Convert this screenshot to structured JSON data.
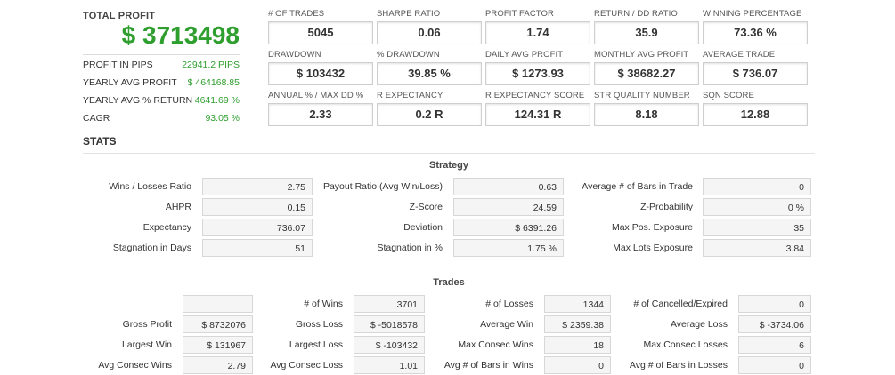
{
  "total_profit": {
    "title": "TOTAL PROFIT",
    "value": "$ 3713498",
    "rows": [
      {
        "label": "PROFIT IN PIPS",
        "value": "22941.2 PIPS"
      },
      {
        "label": "YEARLY AVG PROFIT",
        "value": "$ 464168.85"
      },
      {
        "label": "YEARLY AVG % RETURN",
        "value": "4641.69 %"
      },
      {
        "label": "CAGR",
        "value": "93.05 %"
      }
    ]
  },
  "metrics": [
    {
      "label": "# OF TRADES",
      "value": "5045"
    },
    {
      "label": "SHARPE RATIO",
      "value": "0.06"
    },
    {
      "label": "PROFIT FACTOR",
      "value": "1.74"
    },
    {
      "label": "RETURN / DD RATIO",
      "value": "35.9"
    },
    {
      "label": "WINNING PERCENTAGE",
      "value": "73.36 %"
    },
    {
      "label": "DRAWDOWN",
      "value": "$ 103432"
    },
    {
      "label": "% DRAWDOWN",
      "value": "39.85 %"
    },
    {
      "label": "DAILY AVG PROFIT",
      "value": "$ 1273.93"
    },
    {
      "label": "MONTHLY AVG PROFIT",
      "value": "$ 38682.27"
    },
    {
      "label": "AVERAGE TRADE",
      "value": "$ 736.07"
    },
    {
      "label": "ANNUAL % / MAX DD %",
      "value": "2.33"
    },
    {
      "label": "R EXPECTANCY",
      "value": "0.2 R"
    },
    {
      "label": "R EXPECTANCY SCORE",
      "value": "124.31 R"
    },
    {
      "label": "STR QUALITY NUMBER",
      "value": "8.18"
    },
    {
      "label": "SQN SCORE",
      "value": "12.88"
    }
  ],
  "stats": {
    "title": "STATS",
    "strategy": {
      "title": "Strategy",
      "rows": [
        [
          {
            "label": "Wins / Losses Ratio",
            "value": "2.75"
          },
          {
            "label": "Payout Ratio (Avg Win/Loss)",
            "value": "0.63"
          },
          {
            "label": "Average # of Bars in Trade",
            "value": "0"
          }
        ],
        [
          {
            "label": "AHPR",
            "value": "0.15"
          },
          {
            "label": "Z-Score",
            "value": "24.59"
          },
          {
            "label": "Z-Probability",
            "value": "0 %"
          }
        ],
        [
          {
            "label": "Expectancy",
            "value": "736.07"
          },
          {
            "label": "Deviation",
            "value": "$ 6391.26"
          },
          {
            "label": "Max Pos. Exposure",
            "value": "35"
          }
        ],
        [
          {
            "label": "Stagnation in Days",
            "value": "51"
          },
          {
            "label": "Stagnation in %",
            "value": "1.75 %"
          },
          {
            "label": "Max Lots Exposure",
            "value": "3.84"
          }
        ]
      ]
    },
    "trades": {
      "title": "Trades",
      "rows": [
        [
          {
            "label": "",
            "value": ""
          },
          {
            "label": "# of Wins",
            "value": "3701"
          },
          {
            "label": "# of Losses",
            "value": "1344"
          },
          {
            "label": "# of Cancelled/Expired",
            "value": "0"
          }
        ],
        [
          {
            "label": "Gross Profit",
            "value": "$ 8732076"
          },
          {
            "label": "Gross Loss",
            "value": "$ -5018578"
          },
          {
            "label": "Average Win",
            "value": "$ 2359.38"
          },
          {
            "label": "Average Loss",
            "value": "$ -3734.06"
          }
        ],
        [
          {
            "label": "Largest Win",
            "value": "$ 131967"
          },
          {
            "label": "Largest Loss",
            "value": "$ -103432"
          },
          {
            "label": "Max Consec Wins",
            "value": "18"
          },
          {
            "label": "Max Consec Losses",
            "value": "6"
          }
        ],
        [
          {
            "label": "Avg Consec Wins",
            "value": "2.79"
          },
          {
            "label": "Avg Consec Loss",
            "value": "1.01"
          },
          {
            "label": "Avg # of Bars in Wins",
            "value": "0"
          },
          {
            "label": "Avg # of Bars in Losses",
            "value": "0"
          }
        ]
      ]
    }
  }
}
